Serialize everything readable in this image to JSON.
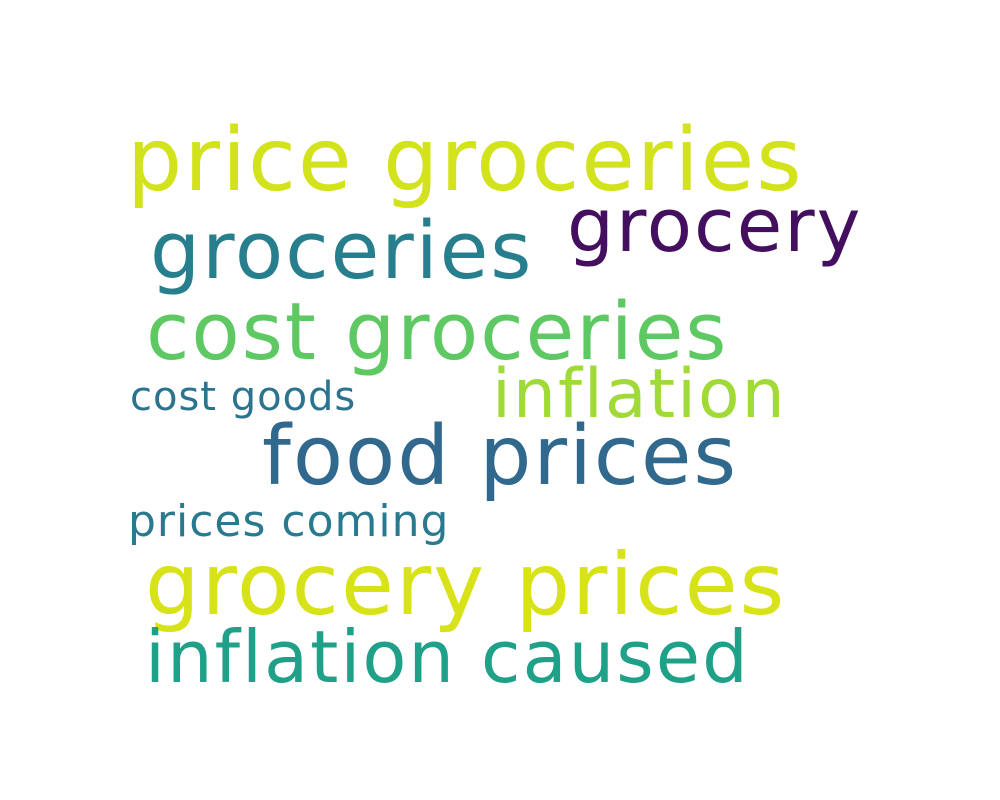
{
  "cloud": {
    "words": [
      {
        "text": "price groceries",
        "color": "#d2e21b"
      },
      {
        "text": "groceries",
        "color": "#277f8e"
      },
      {
        "text": "grocery",
        "color": "#440f5e"
      },
      {
        "text": "cost groceries",
        "color": "#5ec962"
      },
      {
        "text": "inflation",
        "color": "#a0da39"
      },
      {
        "text": "cost goods",
        "color": "#2b738e"
      },
      {
        "text": "food prices",
        "color": "#30688e"
      },
      {
        "text": "prices coming",
        "color": "#297a8e"
      },
      {
        "text": "grocery prices",
        "color": "#d8e219"
      },
      {
        "text": "inflation caused",
        "color": "#1fa088"
      }
    ]
  }
}
